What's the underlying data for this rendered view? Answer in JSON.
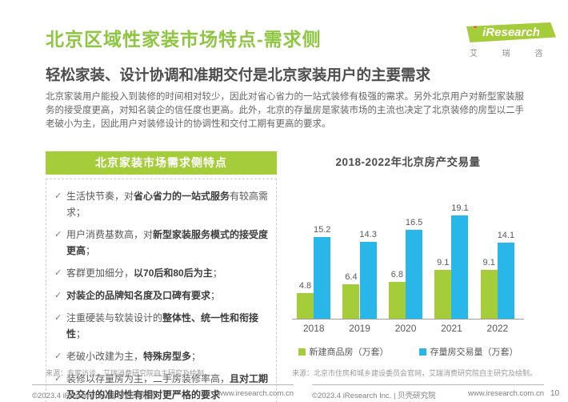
{
  "page": {
    "title": "北京区域性家装市场特点-需求侧",
    "subtitle": "轻松家装、设计协调和准期交付是北京家装用户的主要需求",
    "body": "北京家装用户能投入到装修的时间相对较少，因此对省心省力的一站式装修有极强的需求。另外北京用户对新型家装服务的接受度更高，对知名装企的信任度也更高。此外，北京的存量房是家装市场的主流也决定了北京装修的房型以二手老破小为主，因此用户对装修设计的协调性和交付工期有更高的要求。",
    "page_number": "10"
  },
  "logo": {
    "brand": "iResearch",
    "subtext": "艾 瑞 咨 询"
  },
  "panel": {
    "header": "北京家装市场需求侧特点",
    "check_glyph": "✓",
    "items": [
      {
        "pre": "生活快节奏，对",
        "bold": "省心省力的一站式服务",
        "post": "有较高需求；"
      },
      {
        "pre": "用户消费基数高，对",
        "bold": "新型家装服务模式的接受度更高",
        "post": "；"
      },
      {
        "pre": "客群更加细分，",
        "bold": "以70后和80后为主",
        "post": "；"
      },
      {
        "pre": "",
        "bold": "对装企的品牌知名度及口碑有要求",
        "post": "；"
      },
      {
        "pre": "注重硬装与软装设计的",
        "bold": "整体性、统一性和衔接性",
        "post": "；"
      },
      {
        "pre": "老破小改建为主，",
        "bold": "特殊房型多",
        "post": "；"
      },
      {
        "pre": "装修以存量房为主，二手房装修率高，",
        "bold": "且对工期及交付的准时性有相对更严格的要求",
        "post": ""
      }
    ]
  },
  "chart_data": {
    "type": "bar",
    "title": "2018-2022年北京房产交易量",
    "categories": [
      "2018",
      "2019",
      "2020",
      "2021",
      "2022"
    ],
    "series": [
      {
        "name": "新建商品房（万套）",
        "color": "#a5cd39",
        "values": [
          4.8,
          6.4,
          6.8,
          9.1,
          9.1
        ]
      },
      {
        "name": "存量房交易量（万套）",
        "color": "#29b7ea",
        "values": [
          15.2,
          14.3,
          16.5,
          19.1,
          14.1
        ]
      }
    ],
    "ylim": [
      0,
      21
    ],
    "grid": false,
    "legend_position": "bottom",
    "unit": "万套"
  },
  "sources": {
    "left": "来源：专家访谈，艾瑞消费研究院自主研究及绘制。",
    "right": "来源：北京市住房和城乡建设委员会官网，艾瑞消费研究院自主研究及绘制。"
  },
  "footer": {
    "copyright": "©2023.4 iResearch Inc. | 贝壳研究院",
    "website": "www.iresearch.com.cn"
  },
  "colors": {
    "brand_green": "#8dc63f",
    "panel_green": "#a5cd39",
    "bar_blue": "#29b7ea"
  }
}
